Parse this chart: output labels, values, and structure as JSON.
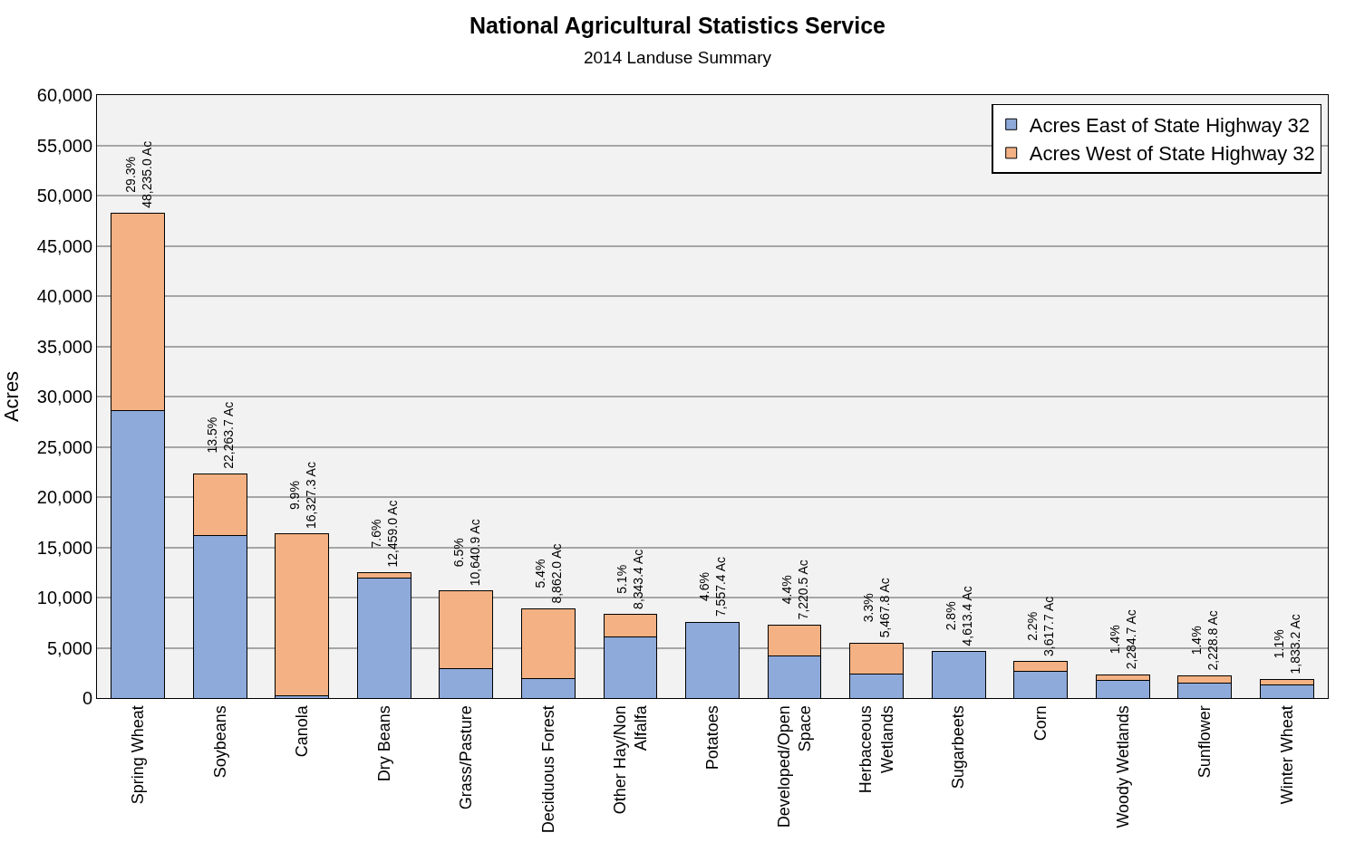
{
  "chart_data": {
    "type": "bar",
    "title": "National Agricultural Statistics Service",
    "subtitle": "2014 Landuse Summary",
    "ylabel": "Acres",
    "categories": [
      "Spring Wheat",
      "Soybeans",
      "Canola",
      "Dry Beans",
      "Grass/Pasture",
      "Deciduous Forest",
      "Other Hay/Non Alfalfa",
      "Potatoes",
      "Developed/Open Space",
      "Herbaceous Wetlands",
      "Sugarbeets",
      "Corn",
      "Woody Wetlands",
      "Sunflower",
      "Winter Wheat"
    ],
    "series": [
      {
        "name": "Acres East of State Highway 32",
        "color": "#8eaadb",
        "values": [
          28600,
          16200,
          200,
          11900,
          2900,
          1900,
          6100,
          7560,
          4200,
          2400,
          4610,
          2650,
          1800,
          1450,
          1350
        ]
      },
      {
        "name": "Acres West of State Highway 32",
        "color": "#f4b183",
        "values": [
          19640,
          6060,
          16130,
          560,
          7740,
          6960,
          2240,
          null,
          3020,
          3070,
          null,
          970,
          480,
          780,
          480
        ]
      }
    ],
    "stacked": true,
    "totals": [
      "29.3%\n48,235.0 Ac",
      "13.5%\n22,263.7 Ac",
      "9.9%\n16,327.3 Ac",
      "7.6%\n12,459.0 Ac",
      "6.5%\n10,640.9 Ac",
      "5.4%\n8,862.0 Ac",
      "5.1%\n8,343.4 Ac",
      "4.6%\n7,557.4 Ac",
      "4.4%\n7,220.5 Ac",
      "3.3%\n5,467.8 Ac",
      "2.8%\n4,613.4 Ac",
      "2.2%\n3,617.7 Ac",
      "1.4%\n2,284.7 Ac",
      "1.4%\n2,228.8 Ac",
      "1.1%\n1,833.2 Ac"
    ],
    "ylim": [
      0,
      60000
    ],
    "yticks": [
      {
        "value": 0,
        "label": "0"
      },
      {
        "value": 5000,
        "label": "5,000"
      },
      {
        "value": 10000,
        "label": "10,000"
      },
      {
        "value": 15000,
        "label": "15,000"
      },
      {
        "value": 20000,
        "label": "20,000"
      },
      {
        "value": 25000,
        "label": "25,000"
      },
      {
        "value": 30000,
        "label": "30,000"
      },
      {
        "value": 35000,
        "label": "35,000"
      },
      {
        "value": 40000,
        "label": "40,000"
      },
      {
        "value": 45000,
        "label": "45,000"
      },
      {
        "value": 50000,
        "label": "50,000"
      },
      {
        "value": 55000,
        "label": "55,000"
      },
      {
        "value": 60000,
        "label": "60,000"
      }
    ],
    "grid": "y",
    "legend": "top right"
  }
}
